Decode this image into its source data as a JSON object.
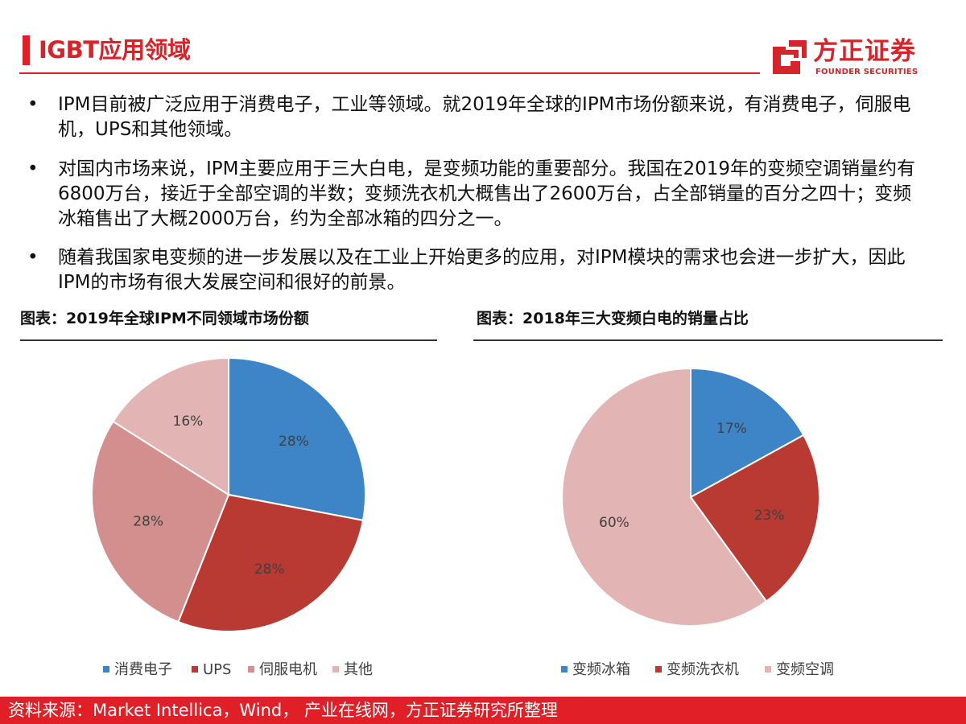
{
  "header": {
    "title": "IGBT应用领域"
  },
  "logo": {
    "cn_name": "方正证券",
    "en_name": "FOUNDER SECURITIES",
    "brand_color": "#d7232a"
  },
  "bullets": [
    "IPM目前被广泛应用于消费电子，工业等领域。就2019年全球的IPM市场份额来说，有消费电子，伺服电机，UPS和其他领域。",
    "对国内市场来说，IPM主要应用于三大白电，是变频功能的重要部分。我国在2019年的变频空调销量约有6800万台，接近于全部空调的半数；变频洗衣机大概售出了2600万台，占全部销量的百分之四十；变频冰箱售出了大概2000万台，约为全部冰箱的四分之一。",
    "随着我国家电变频的进一步发展以及在工业上开始更多的应用，对IPM模块的需求也会进一步扩大，因此IPM的市场有很大发展空间和很好的前景。"
  ],
  "bullet_symbol": "•",
  "chart_data": [
    {
      "type": "pie",
      "title": "图表：2019年全球IPM不同领域市场份额",
      "slices": [
        {
          "label": "消费电子",
          "value": 28,
          "display": "28%",
          "color": "#3d85c6"
        },
        {
          "label": "UPS",
          "value": 28,
          "display": "28%",
          "color": "#b83a33"
        },
        {
          "label": "伺服电机",
          "value": 28,
          "display": "28%",
          "color": "#d28f8e"
        },
        {
          "label": "其他",
          "value": 16,
          "display": "16%",
          "color": "#e2b5b4"
        }
      ],
      "legend_position": "bottom"
    },
    {
      "type": "pie",
      "title": "图表：2018年三大变频白电的销量占比",
      "slices": [
        {
          "label": "变频冰箱",
          "value": 17,
          "display": "17%",
          "color": "#3d85c6"
        },
        {
          "label": "变频洗衣机",
          "value": 23,
          "display": "23%",
          "color": "#b83a33"
        },
        {
          "label": "变频空调",
          "value": 60,
          "display": "60%",
          "color": "#e2b5b4"
        }
      ],
      "legend_position": "bottom"
    }
  ],
  "footer": {
    "source": "资料来源：Market Intellica，Wind， 产业在线网，方正证券研究所整理"
  }
}
